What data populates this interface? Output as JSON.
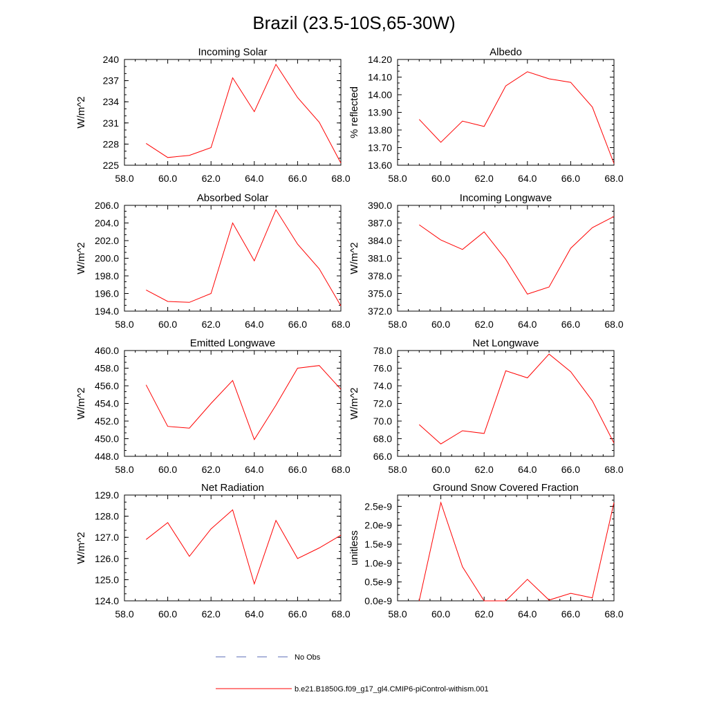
{
  "title": "Brazil (23.5-10S,65-30W)",
  "legend": [
    {
      "label": "No Obs",
      "color": "#5a6bb5",
      "dashed": true
    },
    {
      "label": "b.e21.B1850G.f09_g17_gl4.CMIP6-piControl-withism.001",
      "color": "#ff0000",
      "dashed": false
    }
  ],
  "chart_data": [
    {
      "type": "line",
      "title": "Incoming Solar",
      "ylabel": "W/m^2",
      "xlim": [
        58,
        68
      ],
      "ylim": [
        225,
        240
      ],
      "xticks": [
        "58.0",
        "60.0",
        "62.0",
        "64.0",
        "66.0",
        "68.0"
      ],
      "yticks": [
        "225",
        "228",
        "231",
        "234",
        "237",
        "240"
      ],
      "x": [
        59,
        60,
        61,
        62,
        63,
        64,
        65,
        66,
        67,
        68
      ],
      "series": [
        {
          "values": [
            228.1,
            226.1,
            226.4,
            227.5,
            237.4,
            232.6,
            239.3,
            234.6,
            231.1,
            225.3
          ]
        }
      ]
    },
    {
      "type": "line",
      "title": "Albedo",
      "ylabel": "% reflected",
      "xlim": [
        58,
        68
      ],
      "ylim": [
        13.6,
        14.2
      ],
      "xticks": [
        "58.0",
        "60.0",
        "62.0",
        "64.0",
        "66.0",
        "68.0"
      ],
      "yticks": [
        "13.60",
        "13.70",
        "13.80",
        "13.90",
        "14.00",
        "14.10",
        "14.20"
      ],
      "x": [
        59,
        60,
        61,
        62,
        63,
        64,
        65,
        66,
        67,
        68
      ],
      "series": [
        {
          "values": [
            13.86,
            13.73,
            13.85,
            13.82,
            14.05,
            14.13,
            14.09,
            14.07,
            13.93,
            13.61
          ]
        }
      ]
    },
    {
      "type": "line",
      "title": "Absorbed Solar",
      "ylabel": "W/m^2",
      "xlim": [
        58,
        68
      ],
      "ylim": [
        194,
        206
      ],
      "xticks": [
        "58.0",
        "60.0",
        "62.0",
        "64.0",
        "66.0",
        "68.0"
      ],
      "yticks": [
        "194.0",
        "196.0",
        "198.0",
        "200.0",
        "202.0",
        "204.0",
        "206.0"
      ],
      "x": [
        59,
        60,
        61,
        62,
        63,
        64,
        65,
        66,
        67,
        68
      ],
      "series": [
        {
          "values": [
            196.4,
            195.1,
            195.0,
            196.0,
            204.0,
            199.7,
            205.5,
            201.6,
            198.8,
            194.6
          ]
        }
      ]
    },
    {
      "type": "line",
      "title": "Incoming Longwave",
      "ylabel": "W/m^2",
      "xlim": [
        58,
        68
      ],
      "ylim": [
        372,
        390
      ],
      "xticks": [
        "58.0",
        "60.0",
        "62.0",
        "64.0",
        "66.0",
        "68.0"
      ],
      "yticks": [
        "372.0",
        "375.0",
        "378.0",
        "381.0",
        "384.0",
        "387.0",
        "390.0"
      ],
      "x": [
        59,
        60,
        61,
        62,
        63,
        64,
        65,
        66,
        67,
        68
      ],
      "series": [
        {
          "values": [
            386.7,
            384.1,
            382.5,
            385.5,
            380.8,
            374.9,
            376.1,
            382.7,
            386.2,
            388.1
          ]
        }
      ]
    },
    {
      "type": "line",
      "title": "Emitted Longwave",
      "ylabel": "W/m^2",
      "xlim": [
        58,
        68
      ],
      "ylim": [
        448,
        460
      ],
      "xticks": [
        "58.0",
        "60.0",
        "62.0",
        "64.0",
        "66.0",
        "68.0"
      ],
      "yticks": [
        "448.0",
        "450.0",
        "452.0",
        "454.0",
        "456.0",
        "458.0",
        "460.0"
      ],
      "x": [
        59,
        60,
        61,
        62,
        63,
        64,
        65,
        66,
        67,
        68
      ],
      "series": [
        {
          "values": [
            456.1,
            451.4,
            451.2,
            454.0,
            456.6,
            449.9,
            453.8,
            458.0,
            458.3,
            455.6
          ]
        }
      ]
    },
    {
      "type": "line",
      "title": "Net Longwave",
      "ylabel": "W/m^2",
      "xlim": [
        58,
        68
      ],
      "ylim": [
        66,
        78
      ],
      "xticks": [
        "58.0",
        "60.0",
        "62.0",
        "64.0",
        "66.0",
        "68.0"
      ],
      "yticks": [
        "66.0",
        "68.0",
        "70.0",
        "72.0",
        "74.0",
        "76.0",
        "78.0"
      ],
      "x": [
        59,
        60,
        61,
        62,
        63,
        64,
        65,
        66,
        67,
        68
      ],
      "series": [
        {
          "values": [
            69.6,
            67.4,
            68.9,
            68.6,
            75.7,
            74.9,
            77.6,
            75.6,
            72.3,
            67.5
          ]
        }
      ]
    },
    {
      "type": "line",
      "title": "Net Radiation",
      "ylabel": "W/m^2",
      "xlim": [
        58,
        68
      ],
      "ylim": [
        124,
        129
      ],
      "xticks": [
        "58.0",
        "60.0",
        "62.0",
        "64.0",
        "66.0",
        "68.0"
      ],
      "yticks": [
        "124.0",
        "125.0",
        "126.0",
        "127.0",
        "128.0",
        "129.0"
      ],
      "x": [
        59,
        60,
        61,
        62,
        63,
        64,
        65,
        66,
        67,
        68
      ],
      "series": [
        {
          "values": [
            126.9,
            127.7,
            126.1,
            127.4,
            128.3,
            124.8,
            127.8,
            126.0,
            126.5,
            127.1
          ]
        }
      ]
    },
    {
      "type": "line",
      "title": "Ground Snow Covered Fraction",
      "ylabel": "unitless",
      "xlim": [
        58,
        68
      ],
      "ylim": [
        0,
        2.8e-09
      ],
      "xticks": [
        "58.0",
        "60.0",
        "62.0",
        "64.0",
        "66.0",
        "68.0"
      ],
      "yticks": [
        "0.0e-9",
        "0.5e-9",
        "1.0e-9",
        "1.5e-9",
        "2.0e-9",
        "2.5e-9"
      ],
      "ytick_values": [
        0,
        5e-10,
        1e-09,
        1.5e-09,
        2e-09,
        2.5e-09
      ],
      "x": [
        59,
        60,
        61,
        62,
        63,
        64,
        65,
        66,
        67,
        68
      ],
      "series": [
        {
          "values": [
            0,
            2.6e-09,
            9e-10,
            0,
            0,
            5.7e-10,
            2e-11,
            2e-10,
            8e-11,
            2.6e-09
          ]
        }
      ]
    }
  ]
}
